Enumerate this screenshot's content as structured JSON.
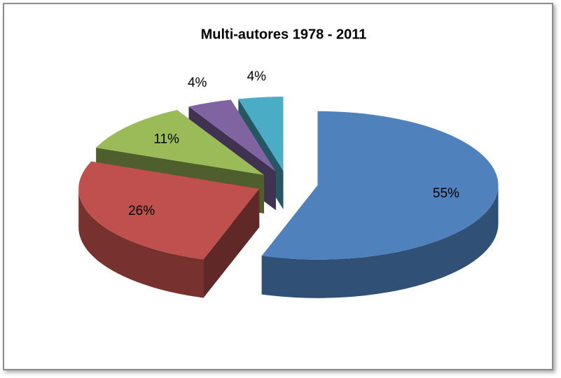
{
  "chart_data": {
    "type": "pie3d",
    "title": "Multi-autores 1978 - 2011",
    "values": [
      55,
      26,
      11,
      4,
      4
    ],
    "value_labels": [
      "55%",
      "26%",
      "11%",
      "4%",
      "4%"
    ],
    "colors": [
      "#4f81bd",
      "#c0504d",
      "#9bbb59",
      "#8064a2",
      "#4bacc6"
    ],
    "exploded": true
  }
}
